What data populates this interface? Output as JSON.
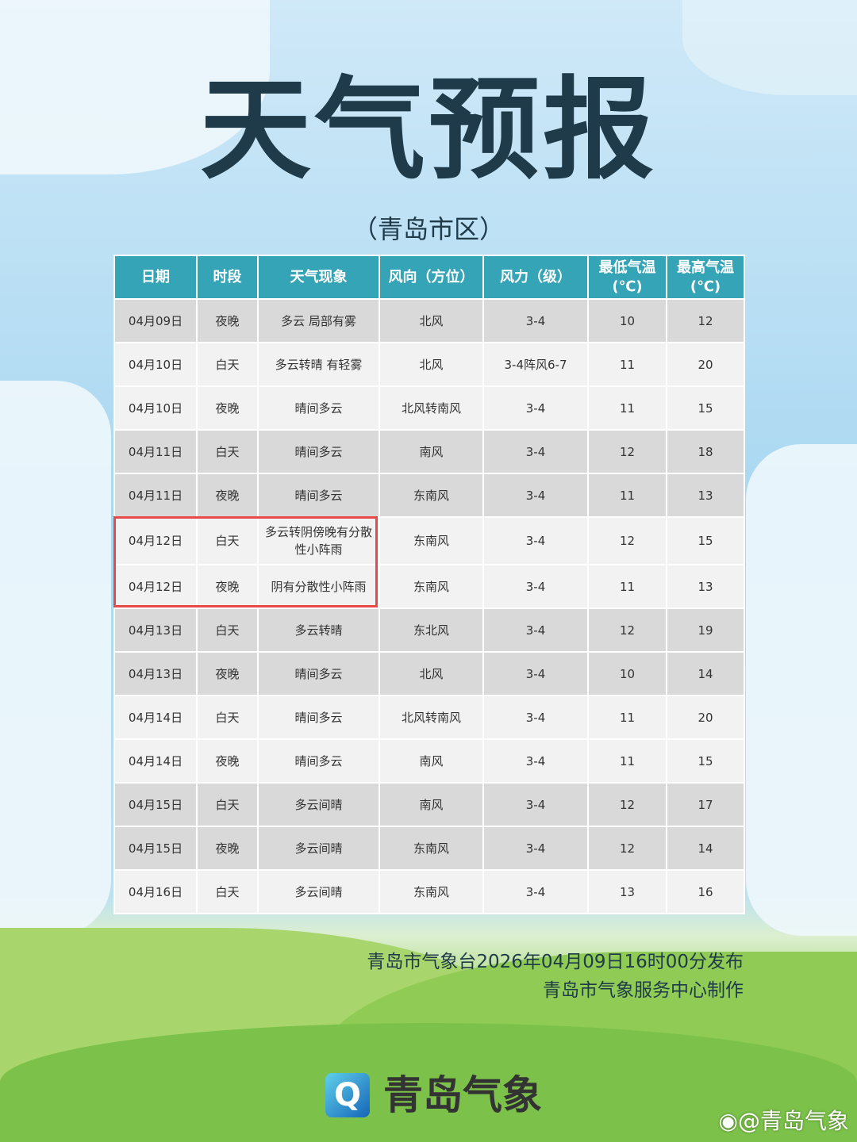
{
  "title": "天气预报",
  "subtitle": "（青岛市区）",
  "table": {
    "headers": [
      "日期",
      "时段",
      "天气现象",
      "风向（方位）",
      "风力（级）",
      "最低气温(℃)",
      "最高气温(℃)"
    ],
    "rows": [
      [
        "04月09日",
        "夜晚",
        "多云 局部有雾",
        "北风",
        "3-4",
        "10",
        "12"
      ],
      [
        "04月10日",
        "白天",
        "多云转晴 有轻雾",
        "北风",
        "3-4阵风6-7",
        "11",
        "20"
      ],
      [
        "04月10日",
        "夜晚",
        "晴间多云",
        "北风转南风",
        "3-4",
        "11",
        "15"
      ],
      [
        "04月11日",
        "白天",
        "晴间多云",
        "南风",
        "3-4",
        "12",
        "18"
      ],
      [
        "04月11日",
        "夜晚",
        "晴间多云",
        "东南风",
        "3-4",
        "11",
        "13"
      ],
      [
        "04月12日",
        "白天",
        "多云转阴傍晚有分散性小阵雨",
        "东南风",
        "3-4",
        "12",
        "15"
      ],
      [
        "04月12日",
        "夜晚",
        "阴有分散性小阵雨",
        "东南风",
        "3-4",
        "11",
        "13"
      ],
      [
        "04月13日",
        "白天",
        "多云转晴",
        "东北风",
        "3-4",
        "12",
        "19"
      ],
      [
        "04月13日",
        "夜晚",
        "晴间多云",
        "北风",
        "3-4",
        "10",
        "14"
      ],
      [
        "04月14日",
        "白天",
        "晴间多云",
        "北风转南风",
        "3-4",
        "11",
        "20"
      ],
      [
        "04月14日",
        "夜晚",
        "晴间多云",
        "南风",
        "3-4",
        "11",
        "15"
      ],
      [
        "04月15日",
        "白天",
        "多云间晴",
        "南风",
        "3-4",
        "12",
        "17"
      ],
      [
        "04月15日",
        "夜晚",
        "多云间晴",
        "东南风",
        "3-4",
        "12",
        "14"
      ],
      [
        "04月16日",
        "白天",
        "多云间晴",
        "东南风",
        "3-4",
        "13",
        "16"
      ]
    ]
  },
  "footer": {
    "issued": "青岛市气象台2026年04月09日16时00分发布",
    "producer": "青岛市气象服务中心制作"
  },
  "brand": {
    "name": "青岛气象",
    "logo_letter": "Q"
  },
  "watermark": "@青岛气象",
  "colors": {
    "header": "#35a4b6",
    "highlight": "#e84a4a",
    "title": "#1f3b4a"
  }
}
